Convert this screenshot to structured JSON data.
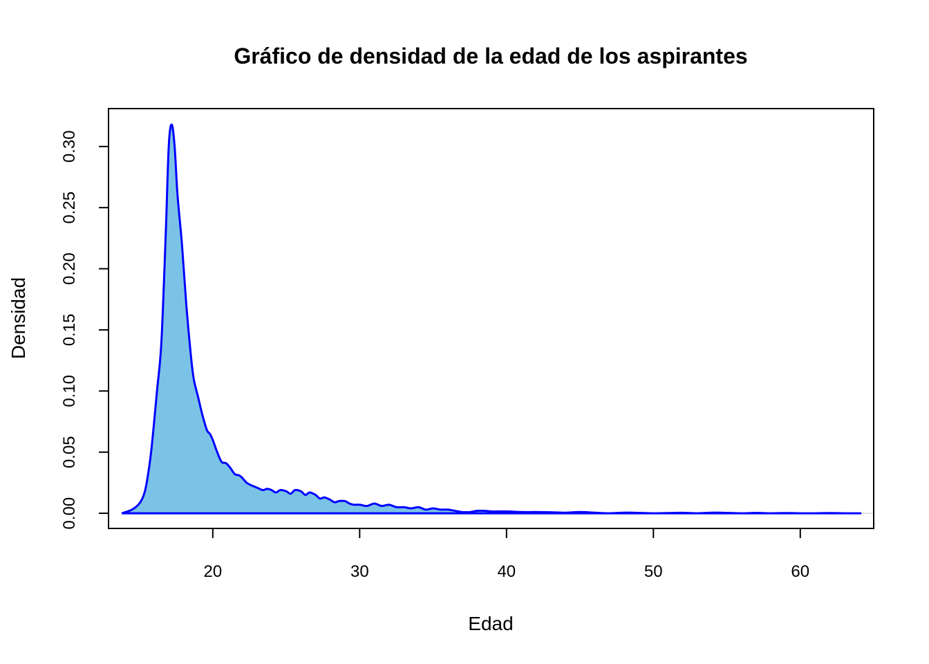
{
  "chart_data": {
    "type": "area",
    "title": "Gráfico de densidad de la edad de los aspirantes",
    "xlabel": "Edad",
    "ylabel": "Densidad",
    "xlim": [
      12.9,
      65.0
    ],
    "ylim": [
      -0.0124,
      0.331
    ],
    "xticks": [
      20,
      30,
      40,
      50,
      60
    ],
    "xtick_labels": [
      "20",
      "30",
      "40",
      "50",
      "60"
    ],
    "yticks": [
      0,
      0.05,
      0.1,
      0.15,
      0.2,
      0.25,
      0.3
    ],
    "ytick_labels": [
      "0.00",
      "0.05",
      "0.10",
      "0.15",
      "0.20",
      "0.25",
      "0.30"
    ],
    "grid": false,
    "legend": "none",
    "colors": {
      "fill": "#7bc3e6",
      "line": "#0000ff",
      "baseline": "#d9d9d9"
    },
    "series": [
      {
        "x": [
          13.8,
          14.5,
          15.0,
          15.3,
          15.5,
          15.8,
          16.2,
          16.5,
          16.8,
          17.0,
          17.2,
          17.4,
          17.6,
          17.9,
          18.2,
          18.5,
          18.7,
          19.0,
          19.3,
          19.6,
          19.8,
          20.0,
          20.3,
          20.6,
          20.9,
          21.2,
          21.5,
          21.8,
          22.0,
          22.3,
          22.6,
          23.0,
          23.4,
          23.7,
          24.0,
          24.3,
          24.6,
          25.0,
          25.3,
          25.6,
          26.0,
          26.3,
          26.6,
          27.0,
          27.3,
          27.6,
          28.0,
          28.3,
          28.6,
          29.0,
          29.3,
          29.6,
          30.0,
          30.5,
          31.0,
          31.5,
          32.0,
          32.5,
          33.0,
          33.5,
          34.0,
          34.5,
          35.0,
          35.5,
          36.0,
          36.5,
          37.0,
          37.5,
          38.0,
          38.5,
          39.0,
          40.0,
          41.0,
          42.0,
          43.0,
          44.0,
          45.0,
          46.0,
          47.0,
          48.0,
          49.0,
          50.0,
          51.0,
          52.0,
          53.0,
          54.0,
          55.0,
          56.0,
          57.0,
          58.0,
          59.0,
          60.0,
          61.0,
          62.0,
          63.0,
          64.1
        ],
        "y": [
          0.0,
          0.003,
          0.008,
          0.015,
          0.025,
          0.05,
          0.1,
          0.14,
          0.23,
          0.3,
          0.318,
          0.3,
          0.26,
          0.22,
          0.17,
          0.13,
          0.11,
          0.095,
          0.08,
          0.068,
          0.065,
          0.06,
          0.05,
          0.042,
          0.041,
          0.037,
          0.032,
          0.031,
          0.029,
          0.025,
          0.023,
          0.021,
          0.019,
          0.02,
          0.019,
          0.017,
          0.019,
          0.018,
          0.016,
          0.019,
          0.018,
          0.015,
          0.017,
          0.015,
          0.012,
          0.013,
          0.011,
          0.009,
          0.01,
          0.01,
          0.008,
          0.007,
          0.007,
          0.006,
          0.008,
          0.006,
          0.007,
          0.005,
          0.005,
          0.004,
          0.005,
          0.003,
          0.004,
          0.003,
          0.003,
          0.002,
          0.001,
          0.001,
          0.002,
          0.002,
          0.0015,
          0.0015,
          0.001,
          0.001,
          0.0008,
          0.0005,
          0.001,
          0.0005,
          0.0,
          0.0005,
          0.0003,
          0.0,
          0.0002,
          0.0004,
          0.0,
          0.0005,
          0.0003,
          0.0,
          0.0003,
          0.0,
          0.0002,
          0.0,
          0.0,
          0.0002,
          0.0,
          0.0
        ]
      }
    ]
  }
}
